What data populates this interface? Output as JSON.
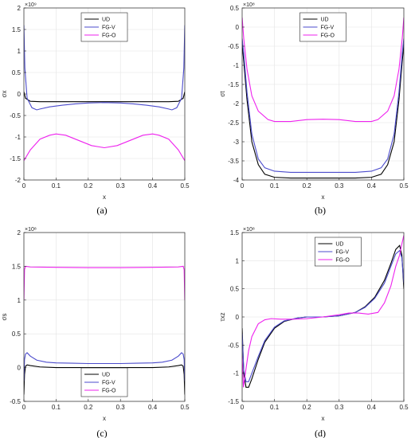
{
  "chart_data": [
    {
      "type": "line",
      "panel_label": "(a)",
      "xlabel": "x",
      "ylabel": "σx",
      "exponent": "×10⁹",
      "xlim": [
        0,
        0.5
      ],
      "ylim": [
        -2,
        2
      ],
      "xticks": [
        0,
        0.1,
        0.2,
        0.3,
        0.4,
        0.5
      ],
      "yticks": [
        -2,
        -1.5,
        -1,
        -0.5,
        0,
        0.5,
        1,
        1.5,
        2
      ],
      "legend_position": "top-center",
      "grid": true,
      "series": [
        {
          "name": "UD",
          "color": "#000000",
          "x": [
            0,
            0.005,
            0.02,
            0.05,
            0.1,
            0.15,
            0.2,
            0.25,
            0.3,
            0.35,
            0.4,
            0.45,
            0.48,
            0.495,
            0.5
          ],
          "y": [
            0.05,
            -0.1,
            -0.17,
            -0.18,
            -0.18,
            -0.18,
            -0.18,
            -0.18,
            -0.18,
            -0.18,
            -0.18,
            -0.18,
            -0.17,
            -0.1,
            0.05
          ]
        },
        {
          "name": "FG-V",
          "color": "#4b4bcc",
          "x": [
            0,
            0.003,
            0.01,
            0.025,
            0.04,
            0.05,
            0.08,
            0.12,
            0.16,
            0.2,
            0.25,
            0.3,
            0.34,
            0.38,
            0.42,
            0.45,
            0.46,
            0.475,
            0.49,
            0.497,
            0.5
          ],
          "y": [
            1.6,
            0.6,
            -0.1,
            -0.32,
            -0.37,
            -0.35,
            -0.3,
            -0.26,
            -0.23,
            -0.21,
            -0.2,
            -0.21,
            -0.23,
            -0.26,
            -0.3,
            -0.35,
            -0.37,
            -0.32,
            -0.1,
            0.6,
            1.6
          ]
        },
        {
          "name": "FG-O",
          "color": "#ee22ee",
          "x": [
            0,
            0.02,
            0.05,
            0.08,
            0.1,
            0.13,
            0.17,
            0.21,
            0.25,
            0.29,
            0.33,
            0.37,
            0.4,
            0.42,
            0.45,
            0.48,
            0.5
          ],
          "y": [
            -1.55,
            -1.3,
            -1.05,
            -0.96,
            -0.93,
            -0.96,
            -1.08,
            -1.2,
            -1.25,
            -1.2,
            -1.08,
            -0.96,
            -0.93,
            -0.96,
            -1.05,
            -1.3,
            -1.55
          ]
        }
      ]
    },
    {
      "type": "line",
      "panel_label": "(b)",
      "xlabel": "x",
      "ylabel": "σt",
      "exponent": "×10⁸",
      "xlim": [
        0,
        0.5
      ],
      "ylim": [
        -4,
        0.5
      ],
      "xticks": [
        0,
        0.1,
        0.2,
        0.3,
        0.4,
        0.5
      ],
      "yticks": [
        -4,
        -3.5,
        -3,
        -2.5,
        -2,
        -1.5,
        -1,
        -0.5,
        0,
        0.5
      ],
      "legend_position": "top-center",
      "grid": true,
      "series": [
        {
          "name": "UD",
          "color": "#000000",
          "x": [
            0,
            0.005,
            0.015,
            0.03,
            0.05,
            0.07,
            0.1,
            0.15,
            0.2,
            0.25,
            0.3,
            0.35,
            0.4,
            0.43,
            0.45,
            0.47,
            0.485,
            0.495,
            0.5
          ],
          "y": [
            -0.45,
            -0.9,
            -1.9,
            -3.0,
            -3.6,
            -3.85,
            -3.93,
            -3.95,
            -3.95,
            -3.95,
            -3.95,
            -3.95,
            -3.93,
            -3.85,
            -3.6,
            -3.0,
            -1.9,
            -0.9,
            -0.45
          ]
        },
        {
          "name": "FG-V",
          "color": "#4b4bcc",
          "x": [
            0,
            0.005,
            0.015,
            0.03,
            0.05,
            0.07,
            0.1,
            0.15,
            0.2,
            0.25,
            0.3,
            0.35,
            0.4,
            0.43,
            0.45,
            0.47,
            0.485,
            0.495,
            0.5
          ],
          "y": [
            -0.3,
            -0.7,
            -1.7,
            -2.8,
            -3.45,
            -3.68,
            -3.77,
            -3.8,
            -3.8,
            -3.8,
            -3.8,
            -3.8,
            -3.77,
            -3.68,
            -3.45,
            -2.8,
            -1.7,
            -0.7,
            -0.3
          ]
        },
        {
          "name": "FG-O",
          "color": "#ee22ee",
          "x": [
            0,
            0.005,
            0.015,
            0.03,
            0.05,
            0.08,
            0.1,
            0.15,
            0.2,
            0.25,
            0.3,
            0.35,
            0.4,
            0.42,
            0.45,
            0.47,
            0.485,
            0.495,
            0.5
          ],
          "y": [
            0.25,
            -0.3,
            -1.1,
            -1.8,
            -2.2,
            -2.42,
            -2.47,
            -2.47,
            -2.42,
            -2.41,
            -2.42,
            -2.47,
            -2.47,
            -2.42,
            -2.2,
            -1.8,
            -1.1,
            -0.3,
            0.25
          ]
        }
      ]
    },
    {
      "type": "line",
      "panel_label": "(c)",
      "xlabel": "x",
      "ylabel": "σs",
      "exponent": "×10⁸",
      "xlim": [
        0,
        0.5
      ],
      "ylim": [
        -0.5,
        2
      ],
      "xticks": [
        0,
        0.1,
        0.2,
        0.3,
        0.4,
        0.5
      ],
      "yticks": [
        -0.5,
        0,
        0.5,
        1,
        1.5,
        2
      ],
      "legend_position": "bottom-center",
      "grid": true,
      "series": [
        {
          "name": "UD",
          "color": "#000000",
          "x": [
            0,
            0.002,
            0.005,
            0.01,
            0.02,
            0.05,
            0.1,
            0.15,
            0.2,
            0.25,
            0.3,
            0.35,
            0.4,
            0.45,
            0.48,
            0.49,
            0.495,
            0.498,
            0.5
          ],
          "y": [
            -0.4,
            -0.1,
            0.02,
            0.04,
            0.03,
            0.01,
            0.0,
            0.0,
            0.0,
            0.0,
            0.0,
            0.0,
            0.0,
            0.01,
            0.03,
            0.04,
            0.02,
            -0.1,
            -0.4
          ]
        },
        {
          "name": "FG-V",
          "color": "#4b4bcc",
          "x": [
            0,
            0.002,
            0.005,
            0.01,
            0.02,
            0.04,
            0.07,
            0.1,
            0.15,
            0.2,
            0.25,
            0.3,
            0.35,
            0.4,
            0.43,
            0.46,
            0.48,
            0.49,
            0.495,
            0.498,
            0.5
          ],
          "y": [
            -0.2,
            0.12,
            0.2,
            0.22,
            0.17,
            0.11,
            0.08,
            0.07,
            0.065,
            0.06,
            0.06,
            0.06,
            0.065,
            0.07,
            0.08,
            0.11,
            0.17,
            0.22,
            0.2,
            0.12,
            -0.2
          ]
        },
        {
          "name": "FG-O",
          "color": "#ee22ee",
          "x": [
            0,
            0.002,
            0.005,
            0.02,
            0.1,
            0.2,
            0.25,
            0.3,
            0.4,
            0.48,
            0.495,
            0.498,
            0.5
          ],
          "y": [
            1.0,
            1.45,
            1.5,
            1.49,
            1.485,
            1.48,
            1.48,
            1.48,
            1.485,
            1.49,
            1.5,
            1.45,
            1.0
          ]
        }
      ]
    },
    {
      "type": "line",
      "panel_label": "(d)",
      "xlabel": "x",
      "ylabel": "τxz",
      "exponent": "×10⁸",
      "xlim": [
        0,
        0.5
      ],
      "ylim": [
        -1.5,
        1.5
      ],
      "xticks": [
        0,
        0.1,
        0.2,
        0.3,
        0.4,
        0.5
      ],
      "yticks": [
        -1.5,
        -1,
        -0.5,
        0,
        0.5,
        1,
        1.5
      ],
      "legend_position": "top-left",
      "grid": true,
      "series": [
        {
          "name": "UD",
          "color": "#000000",
          "x": [
            0,
            0.005,
            0.012,
            0.02,
            0.03,
            0.05,
            0.07,
            0.1,
            0.13,
            0.17,
            0.2,
            0.25,
            0.3,
            0.35,
            0.38,
            0.41,
            0.44,
            0.46,
            0.475,
            0.487,
            0.494,
            0.5
          ],
          "y": [
            -0.2,
            -1.0,
            -1.25,
            -1.25,
            -1.1,
            -0.75,
            -0.45,
            -0.2,
            -0.08,
            -0.02,
            0.0,
            0.0,
            0.02,
            0.08,
            0.18,
            0.35,
            0.65,
            0.95,
            1.2,
            1.27,
            1.1,
            0.5
          ]
        },
        {
          "name": "FG-V",
          "color": "#4b4bcc",
          "x": [
            0,
            0.005,
            0.012,
            0.02,
            0.03,
            0.05,
            0.07,
            0.1,
            0.13,
            0.17,
            0.2,
            0.25,
            0.3,
            0.35,
            0.38,
            0.41,
            0.44,
            0.46,
            0.475,
            0.487,
            0.494,
            0.5
          ],
          "y": [
            -0.3,
            -0.95,
            -1.15,
            -1.15,
            -1.0,
            -0.7,
            -0.42,
            -0.18,
            -0.07,
            -0.02,
            0.0,
            0.0,
            0.02,
            0.08,
            0.17,
            0.33,
            0.6,
            0.9,
            1.12,
            1.18,
            1.05,
            0.6
          ]
        },
        {
          "name": "FG-O",
          "color": "#ee22ee",
          "x": [
            0,
            0.004,
            0.01,
            0.02,
            0.03,
            0.05,
            0.07,
            0.09,
            0.12,
            0.16,
            0.2,
            0.25,
            0.3,
            0.33,
            0.36,
            0.39,
            0.42,
            0.44,
            0.46,
            0.475,
            0.487,
            0.494,
            0.5
          ],
          "y": [
            -0.7,
            -1.25,
            -1.0,
            -0.6,
            -0.35,
            -0.12,
            -0.05,
            -0.03,
            -0.04,
            -0.04,
            -0.03,
            0.0,
            0.04,
            0.07,
            0.07,
            0.05,
            0.08,
            0.25,
            0.55,
            0.9,
            1.1,
            1.3,
            1.45
          ]
        }
      ]
    }
  ]
}
